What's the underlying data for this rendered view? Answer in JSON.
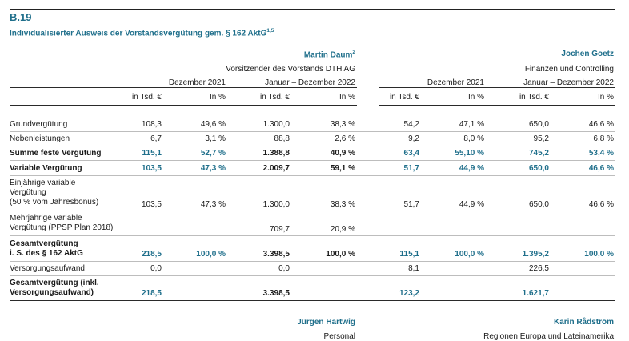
{
  "document": {
    "ref": "B.19",
    "title": "Individualisierter Ausweis der Vorstandsvergütung gem. § 162 AktG",
    "title_sup": "1,5"
  },
  "persons": [
    {
      "name": "Martin Daum",
      "name_sup": "2",
      "role": "Vorsitzender des Vorstands DTH AG",
      "period_prev": "Dezember 2021",
      "period_curr": "Januar – Dezember 2022"
    },
    {
      "name": "Jochen Goetz",
      "name_sup": "",
      "role": "Finanzen und Controlling",
      "period_prev": "Dezember 2021",
      "period_curr": "Januar – Dezember 2022"
    }
  ],
  "column_units": {
    "tsd": "in Tsd. €",
    "pct": "In %"
  },
  "rows": [
    {
      "label": "Grundvergütung",
      "cells": [
        "108,3",
        "49,6 %",
        "1.300,0",
        "38,3 %",
        "54,2",
        "47,1 %",
        "650,0",
        "46,6 %"
      ]
    },
    {
      "label": "Nebenleistungen",
      "cells": [
        "6,7",
        "3,1 %",
        "88,8",
        "2,6 %",
        "9,2",
        "8,0 %",
        "95,2",
        "6,8 %"
      ]
    },
    {
      "label": "Summe feste Vergütung",
      "cells": [
        "115,1",
        "52,7 %",
        "1.388,8",
        "40,9 %",
        "63,4",
        "55,10 %",
        "745,2",
        "53,4 %"
      ]
    },
    {
      "label": "Variable Vergütung",
      "cells": [
        "103,5",
        "47,3 %",
        "2.009,7",
        "59,1 %",
        "51,7",
        "44,9 %",
        "650,0",
        "46,6 %"
      ]
    },
    {
      "label_lines": [
        "Einjährige variable",
        "Vergütung",
        "(50 % vom Jahresbonus)"
      ],
      "cells": [
        "103,5",
        "47,3 %",
        "1.300,0",
        "38,3 %",
        "51,7",
        "44,9 %",
        "650,0",
        "46,6 %"
      ]
    },
    {
      "label_lines": [
        "Mehrjährige variable",
        "Vergütung (PPSP Plan 2018)"
      ],
      "cells": [
        "",
        "",
        "709,7",
        "20,9 %",
        "",
        "",
        "",
        ""
      ]
    },
    {
      "label_lines": [
        "Gesamtvergütung",
        "i. S. des § 162 AktG"
      ],
      "cells": [
        "218,5",
        "100,0 %",
        "3.398,5",
        "100,0 %",
        "115,1",
        "100,0 %",
        "1.395,2",
        "100,0 %"
      ]
    },
    {
      "label": "Versorgungsaufwand",
      "cells": [
        "0,0",
        "",
        "0,0",
        "",
        "8,1",
        "",
        "226,5",
        ""
      ]
    },
    {
      "label_lines": [
        "Gesamtvergütung (inkl.",
        "Versorgungsaufwand)"
      ],
      "cells": [
        "218,5",
        "",
        "3.398,5",
        "",
        "123,2",
        "",
        "1.621,7",
        ""
      ]
    }
  ],
  "next_persons": [
    {
      "name": "Jürgen Hartwig",
      "role": "Personal"
    },
    {
      "name": "Karin Rådström",
      "role": "Regionen Europa und Lateinamerika"
    }
  ]
}
